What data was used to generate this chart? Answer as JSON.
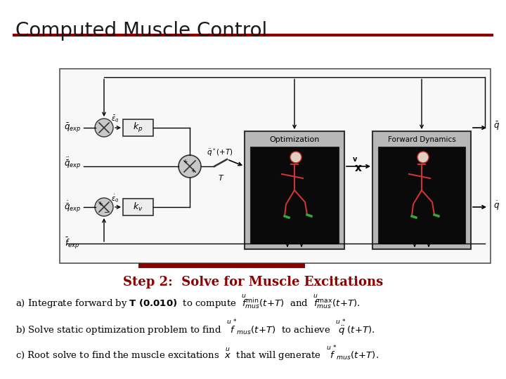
{
  "title": "Computed Muscle Control",
  "title_fontsize": 20,
  "title_color": "#1a1a1a",
  "line_color": "#8B0000",
  "line_lw": 3,
  "step_text": "Step 2:  Solve for Muscle Excitations",
  "step_fontsize": 13,
  "step_color": "#8B0000",
  "bg_color": "#ffffff",
  "diagram_bg": "#f5f5f5",
  "diagram_border": "#888888",
  "box_fill": "#d4d4d4",
  "box_edge": "#333333",
  "dark_fill": "#0a0a0a",
  "circle_fill": "#c8c8c8",
  "red_skeleton": "#cc3333",
  "green_skeleton": "#33aa33"
}
